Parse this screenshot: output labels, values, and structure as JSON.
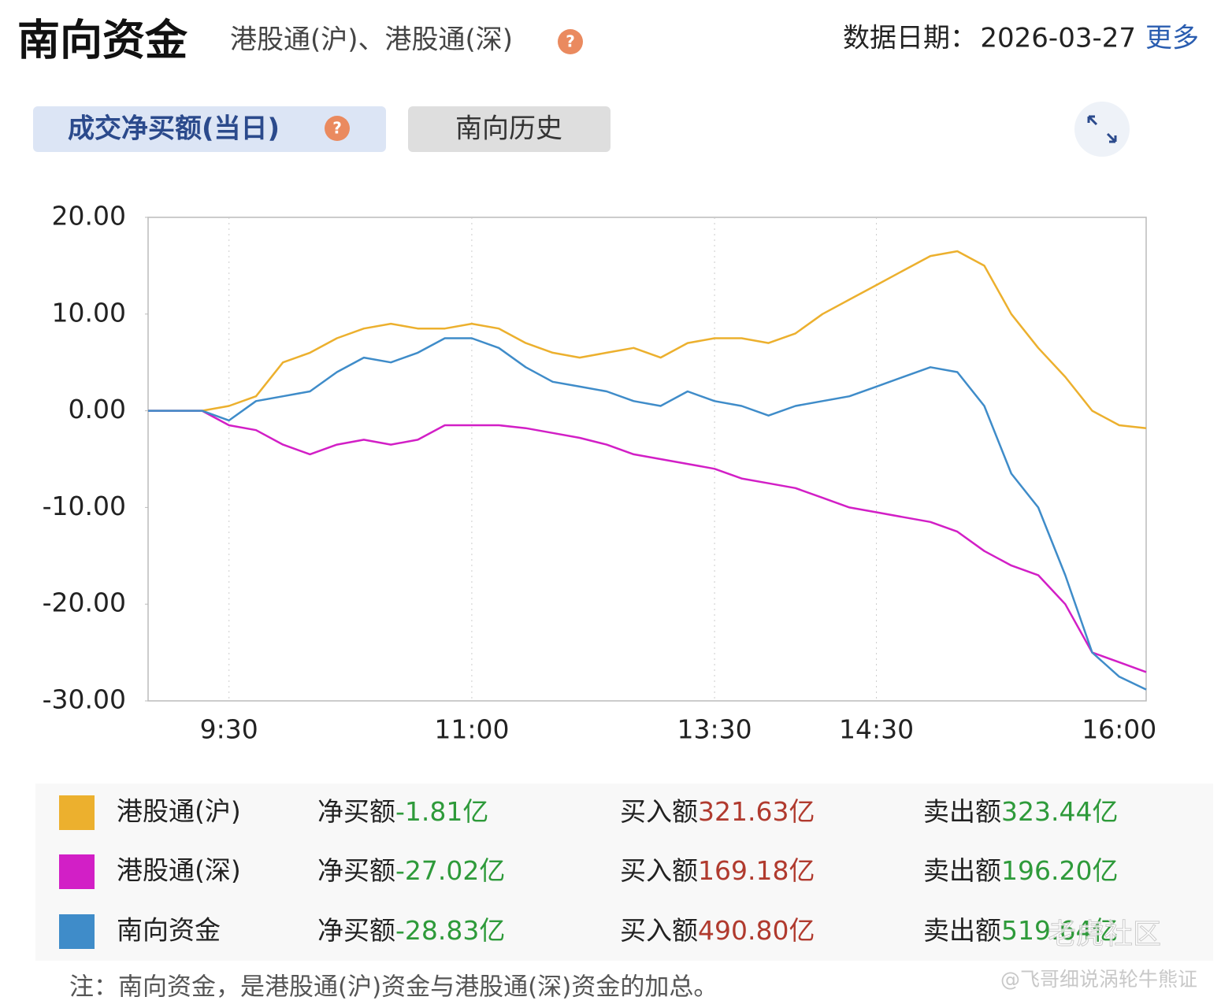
{
  "header": {
    "title": "南向资金",
    "subtitle": "港股通(沪)、港股通(深)",
    "help": "?",
    "date_label": "数据日期：",
    "date": "2026-03-27",
    "more": "更多"
  },
  "tabs": [
    {
      "label": "成交净买额(当日)",
      "help": "?"
    },
    {
      "label": "南向历史"
    }
  ],
  "chart_data": {
    "type": "line",
    "categories": [
      null,
      null,
      null,
      "9:30",
      null,
      null,
      null,
      null,
      null,
      null,
      null,
      null,
      "11:00",
      null,
      null,
      null,
      null,
      null,
      null,
      null,
      null,
      "13:30",
      null,
      null,
      null,
      null,
      null,
      "14:30",
      null,
      null,
      null,
      null,
      null,
      null,
      null,
      null,
      "16:00",
      null
    ],
    "series": [
      {
        "name": "港股通(沪)",
        "color": "#ecb02e",
        "values": [
          0,
          0,
          0,
          0.5,
          1.5,
          5,
          6,
          7.5,
          8.5,
          9,
          8.5,
          8.5,
          9,
          8.5,
          7,
          6,
          5.5,
          6,
          6.5,
          5.5,
          7,
          7.5,
          7.5,
          7,
          8,
          10,
          11.5,
          13,
          14.5,
          16,
          16.5,
          15,
          10,
          6.5,
          3.5,
          0,
          -1.5,
          -1.81
        ]
      },
      {
        "name": "港股通(深)",
        "color": "#d21fc6",
        "values": [
          0,
          0,
          0,
          -1.5,
          -2,
          -3.5,
          -4.5,
          -3.5,
          -3,
          -3.5,
          -3,
          -1.5,
          -1.5,
          -1.5,
          -1.8,
          -2.3,
          -2.8,
          -3.5,
          -4.5,
          -5,
          -5.5,
          -6,
          -7,
          -7.5,
          -8,
          -9,
          -10,
          -10.5,
          -11,
          -11.5,
          -12.5,
          -14.5,
          -16,
          -17,
          -20,
          -25,
          -26,
          -27.02
        ]
      },
      {
        "name": "南向资金",
        "color": "#3f8cc9",
        "values": [
          0,
          0,
          0,
          -1,
          1,
          1.5,
          2,
          4,
          5.5,
          5,
          6,
          7.5,
          7.5,
          6.5,
          4.5,
          3,
          2.5,
          2,
          1,
          0.5,
          2,
          1,
          0.5,
          -0.5,
          0.5,
          1,
          1.5,
          2.5,
          3.5,
          4.5,
          4,
          0.5,
          -6.5,
          -10,
          -17,
          -25,
          -27.5,
          -28.83
        ]
      }
    ],
    "ylim": [
      -30,
      20
    ],
    "yticks": [
      {
        "value": 20,
        "label": "20.00"
      },
      {
        "value": 10,
        "label": "10.00"
      },
      {
        "value": 0,
        "label": "0.00"
      },
      {
        "value": -10,
        "label": "-10.00"
      },
      {
        "value": -20,
        "label": "-20.00"
      },
      {
        "value": -30,
        "label": "-30.00"
      }
    ],
    "grid": "x"
  },
  "legend_rows": [
    {
      "net_label": "净买额",
      "net": "-1.81亿",
      "buy_label": "买入额",
      "buy": "321.63亿",
      "sell_label": "卖出额",
      "sell": "323.44亿"
    },
    {
      "net_label": "净买额",
      "net": "-27.02亿",
      "buy_label": "买入额",
      "buy": "169.18亿",
      "sell_label": "卖出额",
      "sell": "196.20亿"
    },
    {
      "net_label": "净买额",
      "net": "-28.83亿",
      "buy_label": "买入额",
      "buy": "490.80亿",
      "sell_label": "卖出额",
      "sell": "519.64亿"
    }
  ],
  "note": "注：南向资金，是港股通(沪)资金与港股通(深)资金的加总。",
  "watermark": {
    "site": "老虎社区",
    "author": "@飞哥细说涡轮牛熊证"
  }
}
